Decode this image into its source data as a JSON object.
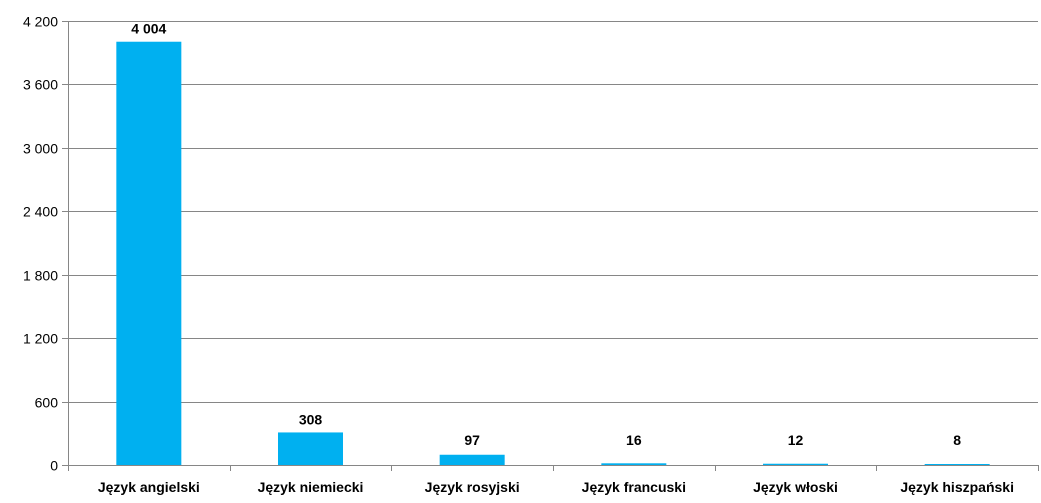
{
  "chart_data": {
    "type": "bar",
    "title": "",
    "xlabel": "",
    "ylabel": "",
    "categories": [
      "Język angielski",
      "Język niemiecki",
      "Język rosyjski",
      "Język francuski",
      "Język włoski",
      "Język hiszpański"
    ],
    "values": [
      4004,
      308,
      97,
      16,
      12,
      8
    ],
    "data_labels": [
      "4 004",
      "308",
      "97",
      "16",
      "12",
      "8"
    ],
    "ylim": [
      0,
      4200
    ],
    "yticks": [
      0,
      600,
      1200,
      1800,
      2400,
      3000,
      3600,
      4200
    ],
    "ytick_labels": [
      "0",
      "600",
      "1 200",
      "1 800",
      "2 400",
      "3 000",
      "3 600",
      "4 200"
    ],
    "grid": true,
    "legend": "none",
    "colors": {
      "bar": "#00b0f0",
      "grid": "#868686",
      "axis": "#868686",
      "text": "#000000"
    }
  }
}
